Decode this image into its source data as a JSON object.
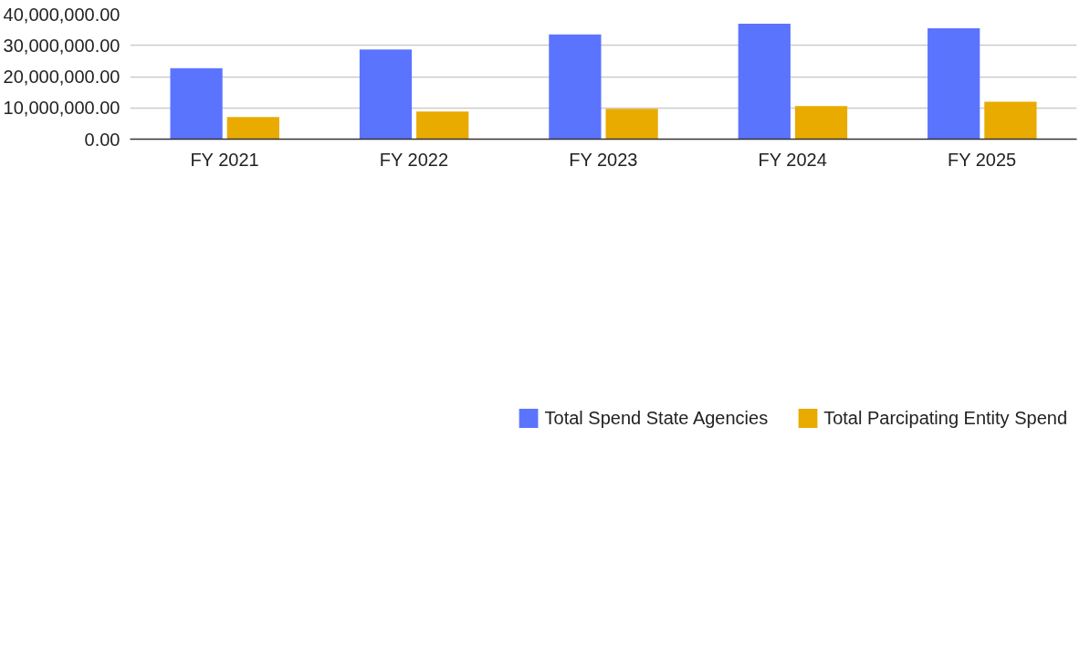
{
  "chart_data": {
    "type": "bar",
    "categories": [
      "FY 2021",
      "FY 2022",
      "FY 2023",
      "FY 2024",
      "FY 2025"
    ],
    "series": [
      {
        "name": "Total Spend State Agencies",
        "color": "#5b74fe",
        "values": [
          22700000,
          28700000,
          33500000,
          36900000,
          35500000
        ]
      },
      {
        "name": "Total Parcipating Entity Spend",
        "color": "#e9ab00",
        "values": [
          7100000,
          8800000,
          9700000,
          10600000,
          12000000
        ]
      }
    ],
    "ylim": [
      0,
      40000000
    ],
    "yticks": [
      {
        "value": 0,
        "label": "0.00"
      },
      {
        "value": 10000000,
        "label": "10,000,000.00"
      },
      {
        "value": 20000000,
        "label": "20,000,000.00"
      },
      {
        "value": 30000000,
        "label": "30,000,000.00"
      },
      {
        "value": 40000000,
        "label": "40,000,000.00"
      }
    ],
    "grid": "y",
    "legend": "bottom"
  }
}
